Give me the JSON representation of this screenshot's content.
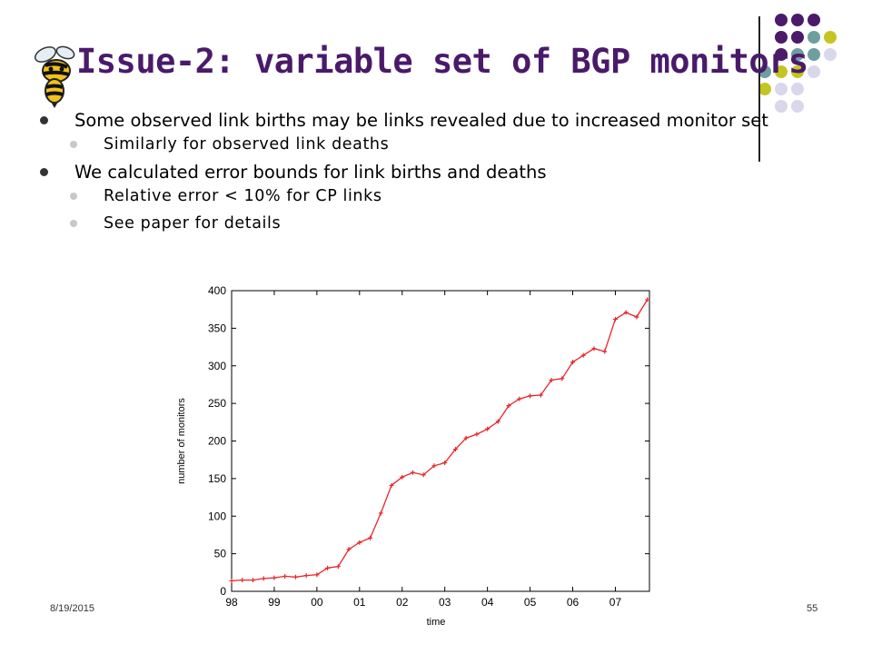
{
  "slide": {
    "title": "Issue-2: variable set of BGP monitors",
    "bullets": [
      "Some observed link births may be links revealed due to increased monitor set",
      "Similarly for observed link deaths",
      "We calculated error bounds for link births and deaths",
      "Relative error < 10% for CP links",
      "See paper for details"
    ],
    "footer": {
      "date": "8/19/2015",
      "page": "55"
    },
    "logo_icon": "yellow-jacket-bee-icon",
    "colors": {
      "title": "#4a1a6a",
      "line": "#e8262a",
      "dot_purple": "#4b1a6b",
      "dot_teal": "#6e9ea0",
      "dot_olive": "#c5c520",
      "dot_lavender": "#d9d7ea"
    }
  },
  "chart_data": {
    "type": "line",
    "xlabel": "time",
    "ylabel": "number of monitors",
    "ylim": [
      0,
      400
    ],
    "yticks": [
      0,
      50,
      100,
      150,
      200,
      250,
      300,
      350,
      400
    ],
    "xlim": [
      1998,
      2007.8
    ],
    "xtick_values": [
      1998,
      1999,
      2000,
      2001,
      2002,
      2003,
      2004,
      2005,
      2006,
      2007
    ],
    "xtick_labels": [
      "98",
      "99",
      "00",
      "01",
      "02",
      "03",
      "04",
      "05",
      "06",
      "07"
    ],
    "grid": false,
    "series": [
      {
        "color": "#e8262a",
        "x": [
          1998.0,
          1998.25,
          1998.5,
          1998.75,
          1999.0,
          1999.25,
          1999.5,
          1999.75,
          2000.0,
          2000.25,
          2000.5,
          2000.75,
          2001.0,
          2001.25,
          2001.5,
          2001.75,
          2002.0,
          2002.25,
          2002.5,
          2002.75,
          2003.0,
          2003.25,
          2003.5,
          2003.75,
          2004.0,
          2004.25,
          2004.5,
          2004.75,
          2005.0,
          2005.25,
          2005.5,
          2005.75,
          2006.0,
          2006.25,
          2006.5,
          2006.75,
          2007.0,
          2007.25,
          2007.5,
          2007.75
        ],
        "y": [
          14,
          15,
          15,
          17,
          18,
          20,
          19,
          21,
          22,
          31,
          33,
          56,
          65,
          71,
          104,
          141,
          152,
          158,
          155,
          167,
          171,
          189,
          204,
          209,
          216,
          226,
          247,
          256,
          260,
          261,
          281,
          283,
          305,
          314,
          323,
          319,
          362,
          371,
          365,
          388
        ]
      }
    ]
  }
}
